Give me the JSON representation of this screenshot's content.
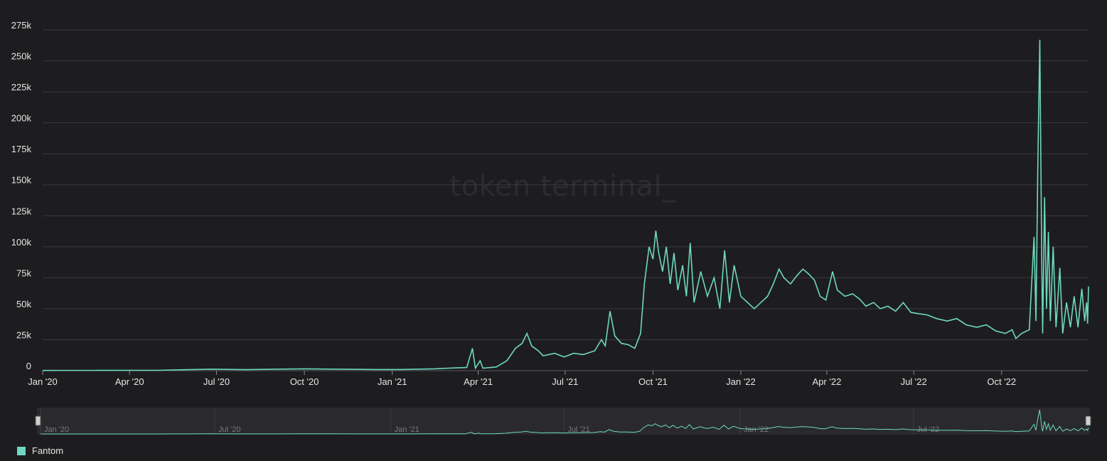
{
  "colors": {
    "background": "#1d1d1f",
    "series": "#6ed8bf",
    "grid": "#3a3a3d",
    "navigator_bg": "#2a2a2d"
  },
  "watermark": "token terminal_",
  "legend": {
    "items": [
      {
        "name": "Fantom",
        "color": "#6ed8bf"
      }
    ]
  },
  "navigator": {
    "ticks": [
      "Jan '20",
      "Jul '20",
      "Jan '21",
      "Jul '21",
      "Jan '22",
      "Jul '22"
    ]
  },
  "chart_data": {
    "type": "line",
    "title": "",
    "xlabel": "",
    "ylabel": "",
    "grid": true,
    "legend_position": "bottom-left",
    "xlim": [
      "2020-01-01",
      "2022-12-31"
    ],
    "ylim": [
      0,
      275000
    ],
    "x_ticks": [
      "Jan '20",
      "Apr '20",
      "Jul '20",
      "Oct '20",
      "Jan '21",
      "Apr '21",
      "Jul '21",
      "Oct '21",
      "Jan '22",
      "Apr '22",
      "Jul '22",
      "Oct '22"
    ],
    "y_ticks": [
      "0",
      "25k",
      "50k",
      "75k",
      "100k",
      "125k",
      "150k",
      "175k",
      "200k",
      "225k",
      "250k",
      "275k"
    ],
    "series": [
      {
        "name": "Fantom",
        "color": "#6ed8bf",
        "points": [
          [
            "2020-01-01",
            200
          ],
          [
            "2020-03-01",
            250
          ],
          [
            "2020-05-01",
            300
          ],
          [
            "2020-06-25",
            1200
          ],
          [
            "2020-08-01",
            800
          ],
          [
            "2020-10-01",
            1500
          ],
          [
            "2020-11-01",
            1200
          ],
          [
            "2020-12-15",
            900
          ],
          [
            "2021-01-10",
            900
          ],
          [
            "2021-02-15",
            1500
          ],
          [
            "2021-03-01",
            2000
          ],
          [
            "2021-03-20",
            2500
          ],
          [
            "2021-03-26",
            18000
          ],
          [
            "2021-03-29",
            2000
          ],
          [
            "2021-04-03",
            8000
          ],
          [
            "2021-04-06",
            2000
          ],
          [
            "2021-04-20",
            3000
          ],
          [
            "2021-05-01",
            8000
          ],
          [
            "2021-05-10",
            18000
          ],
          [
            "2021-05-17",
            22000
          ],
          [
            "2021-05-22",
            30000
          ],
          [
            "2021-05-27",
            20000
          ],
          [
            "2021-06-03",
            16000
          ],
          [
            "2021-06-08",
            12000
          ],
          [
            "2021-06-20",
            14000
          ],
          [
            "2021-06-30",
            11000
          ],
          [
            "2021-07-10",
            14000
          ],
          [
            "2021-07-20",
            13000
          ],
          [
            "2021-08-01",
            16000
          ],
          [
            "2021-08-08",
            25000
          ],
          [
            "2021-08-12",
            20000
          ],
          [
            "2021-08-17",
            48000
          ],
          [
            "2021-08-22",
            28000
          ],
          [
            "2021-08-29",
            22000
          ],
          [
            "2021-09-05",
            21000
          ],
          [
            "2021-09-12",
            18000
          ],
          [
            "2021-09-18",
            30000
          ],
          [
            "2021-09-22",
            70000
          ],
          [
            "2021-09-27",
            100000
          ],
          [
            "2021-10-01",
            90000
          ],
          [
            "2021-10-04",
            113000
          ],
          [
            "2021-10-07",
            95000
          ],
          [
            "2021-10-11",
            80000
          ],
          [
            "2021-10-15",
            100000
          ],
          [
            "2021-10-19",
            70000
          ],
          [
            "2021-10-23",
            95000
          ],
          [
            "2021-10-27",
            65000
          ],
          [
            "2021-11-01",
            85000
          ],
          [
            "2021-11-05",
            60000
          ],
          [
            "2021-11-09",
            103000
          ],
          [
            "2021-11-13",
            55000
          ],
          [
            "2021-11-20",
            80000
          ],
          [
            "2021-11-27",
            60000
          ],
          [
            "2021-12-04",
            75000
          ],
          [
            "2021-12-10",
            50000
          ],
          [
            "2021-12-15",
            97000
          ],
          [
            "2021-12-20",
            55000
          ],
          [
            "2021-12-25",
            85000
          ],
          [
            "2022-01-01",
            60000
          ],
          [
            "2022-01-08",
            55000
          ],
          [
            "2022-01-15",
            50000
          ],
          [
            "2022-01-22",
            55000
          ],
          [
            "2022-01-29",
            60000
          ],
          [
            "2022-02-04",
            70000
          ],
          [
            "2022-02-10",
            82000
          ],
          [
            "2022-02-15",
            75000
          ],
          [
            "2022-02-22",
            70000
          ],
          [
            "2022-03-01",
            77000
          ],
          [
            "2022-03-07",
            82000
          ],
          [
            "2022-03-13",
            78000
          ],
          [
            "2022-03-19",
            73000
          ],
          [
            "2022-03-25",
            60000
          ],
          [
            "2022-03-31",
            57000
          ],
          [
            "2022-04-07",
            80000
          ],
          [
            "2022-04-12",
            65000
          ],
          [
            "2022-04-20",
            60000
          ],
          [
            "2022-04-28",
            62000
          ],
          [
            "2022-05-05",
            58000
          ],
          [
            "2022-05-12",
            52000
          ],
          [
            "2022-05-20",
            55000
          ],
          [
            "2022-05-27",
            50000
          ],
          [
            "2022-06-04",
            52000
          ],
          [
            "2022-06-12",
            48000
          ],
          [
            "2022-06-20",
            55000
          ],
          [
            "2022-06-28",
            47000
          ],
          [
            "2022-07-06",
            46000
          ],
          [
            "2022-07-15",
            45000
          ],
          [
            "2022-07-25",
            42000
          ],
          [
            "2022-08-05",
            40000
          ],
          [
            "2022-08-15",
            42000
          ],
          [
            "2022-08-25",
            37000
          ],
          [
            "2022-09-05",
            35000
          ],
          [
            "2022-09-15",
            37000
          ],
          [
            "2022-09-25",
            32000
          ],
          [
            "2022-10-05",
            30000
          ],
          [
            "2022-10-12",
            33000
          ],
          [
            "2022-10-16",
            26000
          ],
          [
            "2022-10-22",
            30000
          ],
          [
            "2022-10-30",
            33000
          ],
          [
            "2022-11-04",
            108000
          ],
          [
            "2022-11-06",
            40000
          ],
          [
            "2022-11-08",
            170000
          ],
          [
            "2022-11-10",
            267000
          ],
          [
            "2022-11-12",
            90000
          ],
          [
            "2022-11-13",
            30000
          ],
          [
            "2022-11-15",
            140000
          ],
          [
            "2022-11-17",
            50000
          ],
          [
            "2022-11-19",
            112000
          ],
          [
            "2022-11-21",
            40000
          ],
          [
            "2022-11-24",
            100000
          ],
          [
            "2022-11-27",
            35000
          ],
          [
            "2022-12-01",
            83000
          ],
          [
            "2022-12-04",
            30000
          ],
          [
            "2022-12-08",
            55000
          ],
          [
            "2022-12-12",
            35000
          ],
          [
            "2022-12-16",
            60000
          ],
          [
            "2022-12-20",
            35000
          ],
          [
            "2022-12-24",
            66000
          ],
          [
            "2022-12-27",
            40000
          ],
          [
            "2022-12-29",
            55000
          ],
          [
            "2022-12-30",
            38000
          ],
          [
            "2022-12-31",
            68000
          ]
        ]
      }
    ]
  }
}
